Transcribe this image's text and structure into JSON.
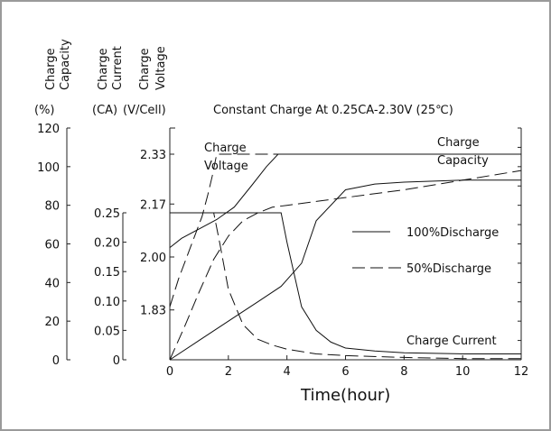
{
  "chart_data": {
    "type": "line",
    "title": "Constant Charge At 0.25CA-2.30V  (25℃)",
    "xlabel": "Time(hour)",
    "x_ticks": [
      0,
      2,
      4,
      6,
      8,
      10,
      12
    ],
    "xlim": [
      0,
      12
    ],
    "axes": {
      "capacity": {
        "label_lines": [
          "Charge",
          "Capacity"
        ],
        "unit": "(%)",
        "ticks": [
          "120",
          "100",
          "80",
          "60",
          "40",
          "20",
          "0"
        ],
        "ylim": [
          0,
          120
        ]
      },
      "current": {
        "label_lines": [
          "Charge",
          "Current"
        ],
        "unit": "(CA)",
        "ticks": [
          "0.25",
          "0.20",
          "0.15",
          "0.10",
          "0.05",
          "0"
        ],
        "ylim": [
          0,
          0.25
        ]
      },
      "voltage": {
        "label_lines": [
          "Charge",
          "Voltage"
        ],
        "unit": "(V/Cell)",
        "ticks": [
          "2.33",
          "2.17",
          "2.00",
          "1.83"
        ],
        "ylim": [
          1.67,
          2.33
        ]
      }
    },
    "annotations": {
      "charge_voltage": [
        "Charge",
        "Voltage"
      ],
      "charge_capacity": [
        "Charge",
        "Capacity"
      ],
      "charge_current": "Charge Current"
    },
    "legend": {
      "position": "right",
      "solid": "100%Discharge",
      "dashed": "50%Discharge"
    },
    "series": [
      {
        "name": "100%Discharge",
        "quantity": "charge_voltage",
        "style": "solid",
        "x": [
          0,
          0.4,
          1.0,
          1.6,
          2.2,
          2.8,
          3.3,
          3.7,
          4.5,
          6,
          8,
          10,
          12
        ],
        "y": [
          2.03,
          2.06,
          2.09,
          2.12,
          2.16,
          2.23,
          2.29,
          2.33,
          2.33,
          2.33,
          2.33,
          2.33,
          2.33
        ]
      },
      {
        "name": "100%Discharge",
        "quantity": "charge_capacity",
        "style": "solid",
        "x": [
          0,
          1,
          2,
          3,
          3.8,
          4.5,
          5,
          6,
          7,
          8,
          10,
          12
        ],
        "y": [
          0,
          10,
          20,
          30,
          38,
          50,
          72,
          88,
          91,
          92,
          93,
          93
        ]
      },
      {
        "name": "100%Discharge",
        "quantity": "charge_current",
        "style": "solid",
        "x": [
          0,
          3.8,
          4.0,
          4.5,
          5,
          5.5,
          6,
          7,
          8,
          10,
          12
        ],
        "y": [
          0.25,
          0.25,
          0.2,
          0.09,
          0.05,
          0.03,
          0.02,
          0.015,
          0.012,
          0.01,
          0.01
        ]
      },
      {
        "name": "50%Discharge",
        "quantity": "charge_voltage",
        "style": "dashed",
        "x": [
          0,
          0.3,
          0.7,
          1.1,
          1.3,
          1.45,
          1.6,
          1.8,
          2.2,
          2.6,
          3,
          4,
          6,
          8,
          10,
          12
        ],
        "y": [
          1.84,
          1.93,
          2.03,
          2.13,
          2.2,
          2.26,
          2.33,
          2.33,
          2.33,
          2.33,
          2.33,
          2.33,
          2.33,
          2.33,
          2.33,
          2.33
        ]
      },
      {
        "name": "50%Discharge",
        "quantity": "charge_capacity",
        "style": "dashed",
        "x": [
          0,
          0.5,
          1,
          1.5,
          2,
          2.5,
          3,
          3.5,
          4,
          5,
          6,
          8,
          10,
          12
        ],
        "y": [
          0,
          17,
          35,
          52,
          64,
          72,
          76,
          79,
          80,
          82,
          84,
          88,
          93,
          98
        ]
      },
      {
        "name": "50%Discharge",
        "quantity": "charge_current",
        "style": "dashed",
        "x": [
          0,
          1.5,
          1.7,
          2.0,
          2.5,
          3.0,
          3.5,
          4.0,
          5,
          6,
          8,
          10,
          12
        ],
        "y": [
          0.25,
          0.25,
          0.2,
          0.12,
          0.06,
          0.035,
          0.025,
          0.018,
          0.01,
          0.007,
          0.004,
          0.002,
          0.002
        ]
      }
    ]
  }
}
